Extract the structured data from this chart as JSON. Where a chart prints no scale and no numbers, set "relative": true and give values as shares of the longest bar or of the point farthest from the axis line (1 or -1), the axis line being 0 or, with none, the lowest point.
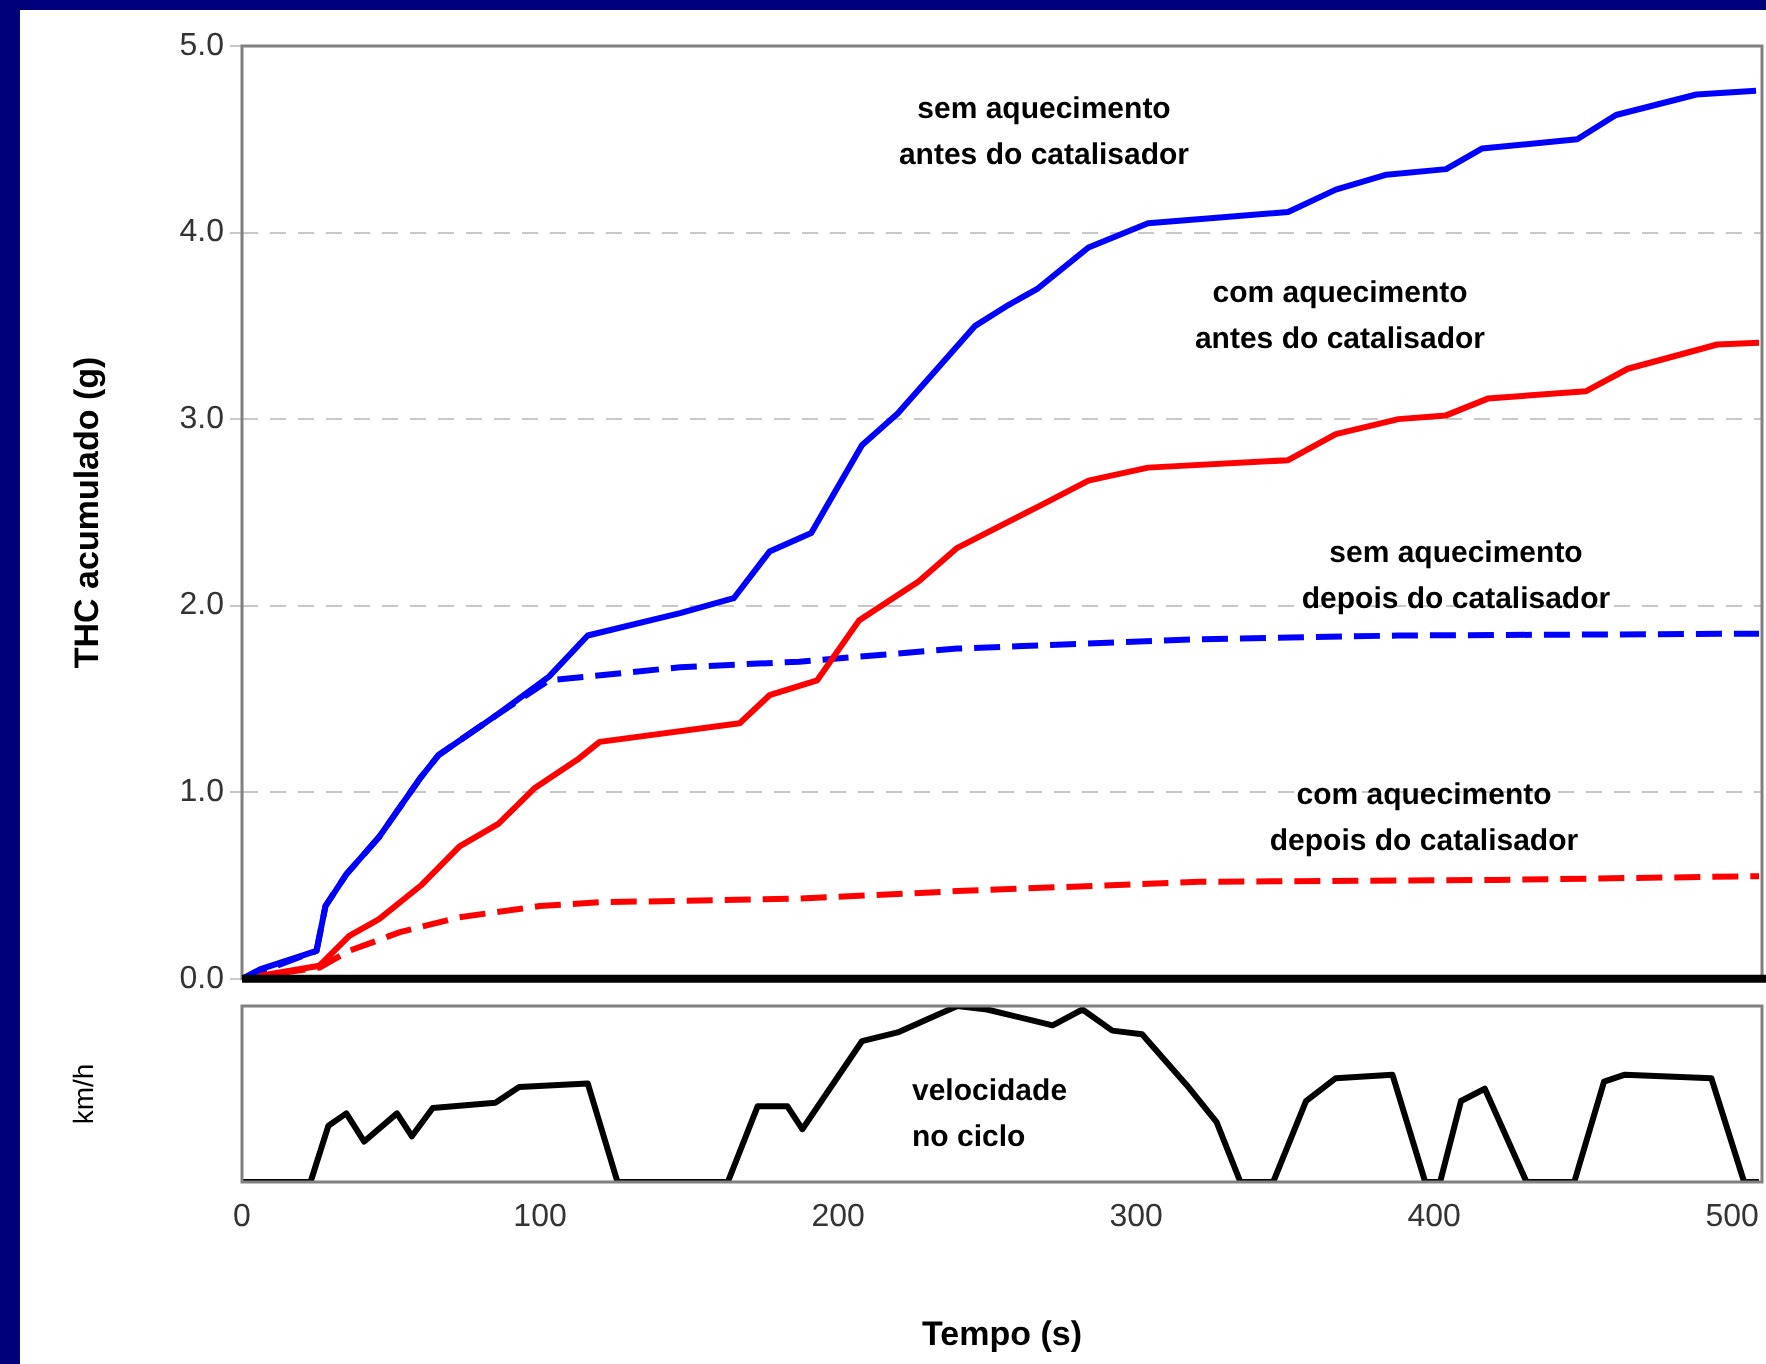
{
  "chart_data": [
    {
      "type": "line",
      "ylabel": "THC acumulado (g)",
      "xlim": [
        0,
        510
      ],
      "ylim": [
        0,
        5
      ],
      "yticks": [
        {
          "value": 0,
          "label": "0.0"
        },
        {
          "value": 1,
          "label": "1.0"
        },
        {
          "value": 2,
          "label": "2.0"
        },
        {
          "value": 3,
          "label": "3.0"
        },
        {
          "value": 4,
          "label": "4.0"
        },
        {
          "value": 5,
          "label": "5.0"
        }
      ],
      "xticks": [
        0,
        100,
        200,
        300,
        400,
        500
      ],
      "grid": "y",
      "legend": false,
      "marker": "none",
      "tick_labels": "y",
      "series": [
        {
          "name": "sem aquecimento antes do catalisador",
          "color": "#0000ff",
          "line_style": "solid",
          "x": [
            0,
            6,
            25,
            28,
            35,
            46,
            60,
            66,
            86,
            103,
            116,
            147,
            165,
            177,
            191,
            208,
            220,
            246,
            257,
            267,
            284,
            304,
            327,
            351,
            367,
            384,
            404,
            416,
            448,
            461,
            488,
            508
          ],
          "values": [
            0,
            0.05,
            0.15,
            0.39,
            0.56,
            0.76,
            1.08,
            1.2,
            1.42,
            1.62,
            1.84,
            1.96,
            2.04,
            2.29,
            2.39,
            2.86,
            3.03,
            3.5,
            3.61,
            3.7,
            3.92,
            4.05,
            4.08,
            4.11,
            4.23,
            4.31,
            4.34,
            4.45,
            4.5,
            4.63,
            4.74,
            4.76
          ]
        },
        {
          "name": "com aquecimento antes do catalisador",
          "color": "#ff0000",
          "line_style": "solid",
          "x": [
            0,
            26,
            36,
            46,
            60,
            73,
            86,
            98,
            113,
            120,
            167,
            177,
            193,
            207,
            227,
            240,
            267,
            284,
            304,
            351,
            367,
            388,
            404,
            418,
            451,
            465,
            495,
            509
          ],
          "values": [
            0,
            0.07,
            0.23,
            0.32,
            0.5,
            0.71,
            0.83,
            1.02,
            1.18,
            1.27,
            1.37,
            1.52,
            1.6,
            1.92,
            2.13,
            2.31,
            2.53,
            2.67,
            2.74,
            2.78,
            2.92,
            3.0,
            3.02,
            3.11,
            3.15,
            3.27,
            3.4,
            3.41
          ]
        },
        {
          "name": "sem aquecimento depois do catalisador",
          "color": "#0000ff",
          "line_style": "dashed",
          "x": [
            0,
            25,
            28,
            35,
            46,
            60,
            66,
            86,
            103,
            116,
            147,
            187,
            240,
            321,
            388,
            509
          ],
          "values": [
            0,
            0.15,
            0.39,
            0.56,
            0.76,
            1.08,
            1.2,
            1.42,
            1.6,
            1.62,
            1.67,
            1.7,
            1.77,
            1.82,
            1.84,
            1.85
          ]
        },
        {
          "name": "com aquecimento depois do catalisador",
          "color": "#ff0000",
          "line_style": "dashed",
          "x": [
            0,
            26,
            36,
            53,
            73,
            100,
            120,
            187,
            240,
            321,
            421,
            509
          ],
          "values": [
            0,
            0.06,
            0.15,
            0.25,
            0.33,
            0.39,
            0.41,
            0.43,
            0.47,
            0.52,
            0.53,
            0.55
          ]
        }
      ]
    },
    {
      "type": "line",
      "relative": true,
      "xlabel": "Tempo (s)",
      "ylabel": "km/h",
      "xlim": [
        0,
        510
      ],
      "xticks": [
        0,
        100,
        200,
        300,
        400,
        500
      ],
      "legend": false,
      "marker": "none",
      "tick_labels": "x",
      "series": [
        {
          "name": "velocidade no ciclo",
          "color": "#000000",
          "x": [
            0,
            23,
            29,
            35,
            41,
            52,
            57,
            64,
            85,
            93,
            116,
            126,
            163,
            173,
            183,
            188,
            208,
            220,
            240,
            250,
            272,
            282,
            292,
            302,
            317,
            327,
            335,
            346,
            357,
            367,
            386,
            397,
            402,
            409,
            417,
            431,
            447,
            457,
            464,
            493,
            504,
            509
          ],
          "values": [
            0,
            0,
            0.32,
            0.39,
            0.23,
            0.39,
            0.26,
            0.42,
            0.45,
            0.54,
            0.56,
            0,
            0,
            0.43,
            0.43,
            0.3,
            0.8,
            0.85,
            1,
            0.98,
            0.89,
            0.98,
            0.86,
            0.84,
            0.55,
            0.34,
            0,
            0,
            0.46,
            0.59,
            0.61,
            0,
            0,
            0.46,
            0.53,
            0,
            0,
            0.57,
            0.61,
            0.59,
            0,
            0
          ]
        }
      ]
    }
  ]
}
